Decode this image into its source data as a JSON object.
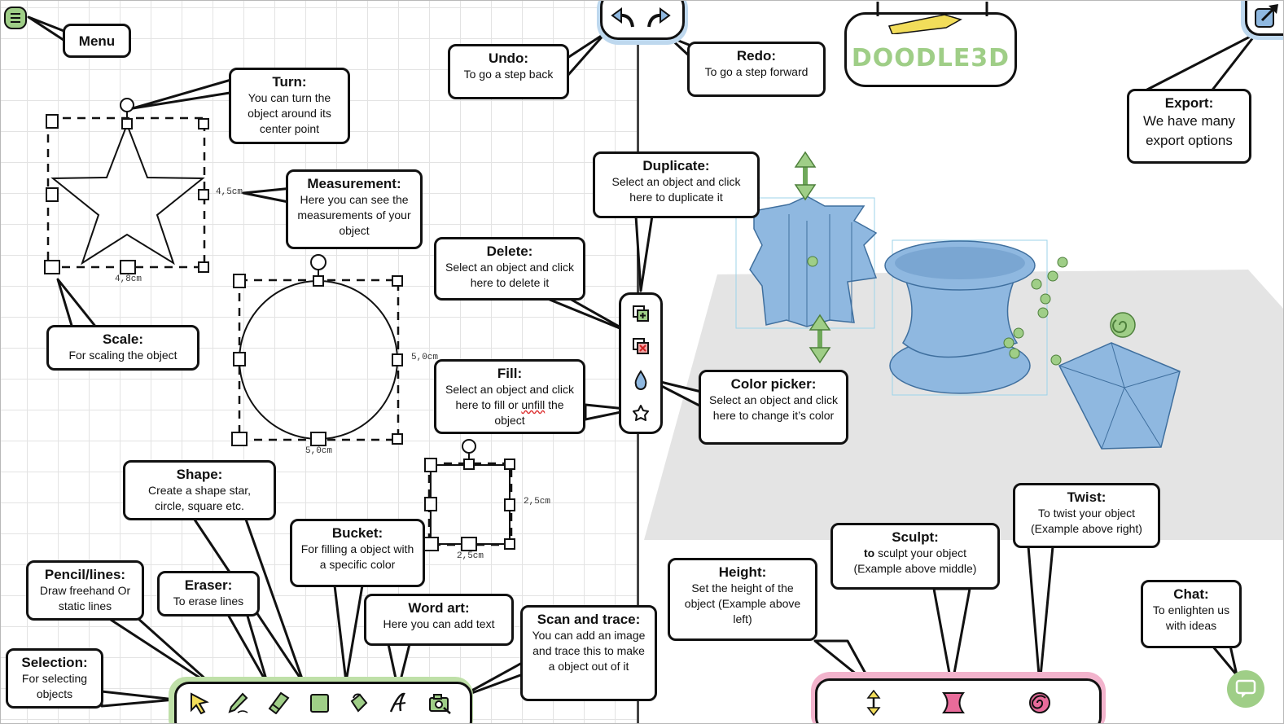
{
  "app": {
    "logo": "DOODLE3D"
  },
  "colors": {
    "accent_green": "#9fce87",
    "shape_blue": "#8fb8e0",
    "pink": "#f2b3cc"
  },
  "icons": {
    "menu": "menu-icon",
    "undo": "undo-icon",
    "redo": "redo-icon",
    "export": "export-icon",
    "chat": "chat-icon",
    "duplicate": "duplicate-icon",
    "delete": "delete-icon",
    "color": "color-drop-icon",
    "fill": "fill-icon"
  },
  "measurements": {
    "star_height": "4,5cm",
    "star_width": "4,8cm",
    "circle_height": "5,0cm",
    "circle_width": "5,0cm",
    "square_height": "2,5cm",
    "square_width": "2,5cm"
  },
  "callouts": {
    "menu": {
      "title": "Menu"
    },
    "undo": {
      "title": "Undo:",
      "desc": "To go a step back"
    },
    "redo": {
      "title": "Redo:",
      "desc": "To go a step forward"
    },
    "export": {
      "title": "Export:",
      "desc": "We have many export options"
    },
    "turn": {
      "title": "Turn:",
      "desc": "You can turn the object around its center point"
    },
    "measurement": {
      "title": "Measurement:",
      "desc": "Here you can see the measurements of your object"
    },
    "scale": {
      "title": "Scale:",
      "desc": "For scaling the object"
    },
    "duplicate": {
      "title": "Duplicate:",
      "desc": "Select an object and click here to duplicate it"
    },
    "delete": {
      "title": "Delete:",
      "desc": "Select an object and click here to delete it"
    },
    "fill": {
      "title": "Fill:",
      "desc_pre": "Select an object and click here to fill or",
      "desc_underlined": "unfill",
      "desc_post": "the object"
    },
    "color_picker": {
      "title": "Color picker:",
      "desc": "Select an object and click here to change it’s color"
    },
    "shape": {
      "title": "Shape:",
      "desc": "Create a shape star, circle, square etc."
    },
    "bucket": {
      "title": "Bucket:",
      "desc": "For filling a object with a specific color"
    },
    "pencil": {
      "title": "Pencil/lines:",
      "desc": "Draw freehand Or static lines"
    },
    "eraser": {
      "title": "Eraser:",
      "desc": "To erase lines"
    },
    "word_art": {
      "title": "Word art:",
      "desc": "Here you can add text"
    },
    "scan": {
      "title": "Scan and trace:",
      "desc": "You can add an image and trace this to make a object out of it"
    },
    "selection": {
      "title": "Selection:",
      "desc": "For selecting objects"
    },
    "height": {
      "title": "Height:",
      "desc": "Set the height of the object (Example above left)"
    },
    "sculpt": {
      "title": "Sculpt:",
      "desc_bold": "to",
      "desc": "sculpt your object (Example above middle)"
    },
    "twist": {
      "title": "Twist:",
      "desc": "To twist your object (Example above right)"
    },
    "chat": {
      "title": "Chat:",
      "desc": "To enlighten us with ideas"
    }
  }
}
